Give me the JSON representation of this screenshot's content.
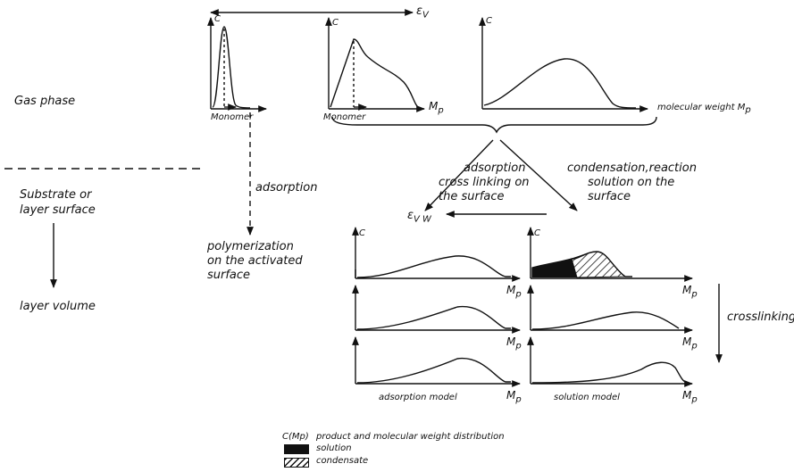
{
  "left_labels": {
    "gas_phase": "Gas phase",
    "substrate_line1": "Substrate or",
    "substrate_line2": "layer surface",
    "layer_volume": "layer volume"
  },
  "top_axis": {
    "epsilon_v": "ε",
    "epsilon_v_sub": "V"
  },
  "gas_phase_plots": [
    {
      "y_axis": "C",
      "x_label": "Monomer"
    },
    {
      "y_axis": "C",
      "x_label": "Monomer",
      "x_axis": "M",
      "x_axis_sub": "p"
    },
    {
      "y_axis": "C",
      "x_axis": "molecular weight M",
      "x_axis_sub": "p"
    }
  ],
  "process_labels": {
    "adsorption": "adsorption",
    "polymerization_1": "polymerization",
    "polymerization_2": "on the activated",
    "polymerization_3": "surface",
    "adsorption_cross_1": "adsorption",
    "adsorption_cross_2": "cross linking on",
    "adsorption_cross_3": "the surface",
    "condensation_1": "condensation,reaction",
    "condensation_2": "solution on the",
    "condensation_3": "surface",
    "epsilon_vw": "ε",
    "epsilon_vw_sub": "V W",
    "crosslinking": "crosslinking"
  },
  "model_plots": {
    "y_axis": "C",
    "x_axis": "M",
    "x_axis_sub": "p",
    "adsorption_model": "adsorption model",
    "solution_model": "solution model"
  },
  "legend": {
    "c_mp": "C(Mp)",
    "c_mp_desc": "product and molecular weight distribution",
    "solution": "solution",
    "condensate": "condensate"
  }
}
